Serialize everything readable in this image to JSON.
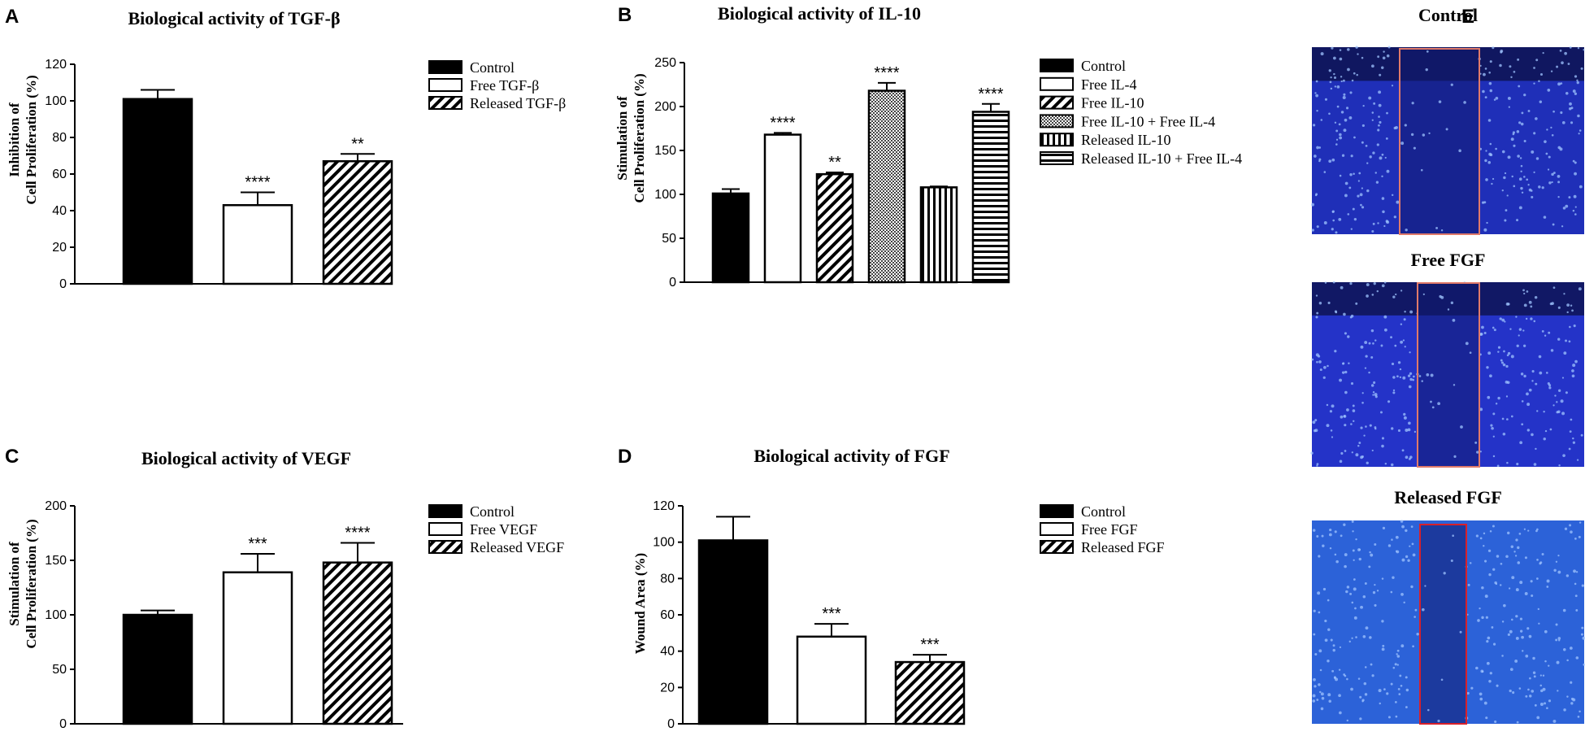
{
  "figure_letter_e": "E",
  "chart_data": [
    {
      "id": "A",
      "letter": "A",
      "type": "bar",
      "title": "Biological activity of TGF-β",
      "ylabel_lines": [
        "Inhibition of",
        "Cell Proliferation (%)"
      ],
      "xlabel": "",
      "ylim": [
        0,
        120
      ],
      "yticks": [
        0,
        20,
        40,
        60,
        80,
        100,
        120
      ],
      "categories": [
        "Control",
        "Free TGF-β",
        "Released TGF-β"
      ],
      "values": [
        101,
        43,
        67
      ],
      "errors": [
        5,
        7,
        4
      ],
      "significance": [
        "",
        "****",
        "**"
      ],
      "fills": [
        "black",
        "white",
        "diag"
      ],
      "legend": [
        "Control",
        "Free TGF-β",
        "Released TGF-β"
      ]
    },
    {
      "id": "B",
      "letter": "B",
      "type": "bar",
      "title": "Biological activity of IL-10",
      "ylabel_lines": [
        "Stimulation of",
        "Cell Proliferation (%)"
      ],
      "xlabel": "",
      "ylim": [
        0,
        250
      ],
      "yticks": [
        0,
        50,
        100,
        150,
        200,
        250
      ],
      "categories": [
        "Control",
        "Free IL-4",
        "Free IL-10",
        "Free IL-10 + Free IL-4",
        "Released IL-10",
        "Released IL-10 + Free IL-4"
      ],
      "values": [
        101,
        168,
        123,
        218,
        108,
        194
      ],
      "errors": [
        5,
        2,
        2,
        9,
        1,
        9
      ],
      "significance": [
        "",
        "****",
        "**",
        "****",
        "",
        "****"
      ],
      "fills": [
        "black",
        "white",
        "diag",
        "dots",
        "vert",
        "horiz"
      ],
      "legend": [
        "Control",
        "Free IL-4",
        "Free IL-10",
        "Free IL-10 + Free IL-4",
        "Released IL-10",
        "Released IL-10 + Free IL-4"
      ]
    },
    {
      "id": "C",
      "letter": "C",
      "type": "bar",
      "title": "Biological activity of VEGF",
      "ylabel_lines": [
        "Stimulation of",
        "Cell Proliferation (%)"
      ],
      "xlabel": "",
      "ylim": [
        0,
        200
      ],
      "yticks": [
        0,
        50,
        100,
        150,
        200
      ],
      "categories": [
        "Control",
        "Free VEGF",
        "Released VEGF"
      ],
      "values": [
        100,
        139,
        148
      ],
      "errors": [
        4,
        17,
        18
      ],
      "significance": [
        "",
        "***",
        "****"
      ],
      "fills": [
        "black",
        "white",
        "diag"
      ],
      "legend": [
        "Control",
        "Free VEGF",
        "Released VEGF"
      ]
    },
    {
      "id": "D",
      "letter": "D",
      "type": "bar",
      "title": "Biological activity of FGF",
      "ylabel_lines": [
        "Wound Area (%)"
      ],
      "xlabel": "",
      "ylim": [
        0,
        120
      ],
      "yticks": [
        0,
        20,
        40,
        60,
        80,
        100,
        120
      ],
      "categories": [
        "Control",
        "Free FGF",
        "Released FGF"
      ],
      "values": [
        101,
        48,
        34
      ],
      "errors": [
        13,
        7,
        4
      ],
      "significance": [
        "",
        "***",
        "***"
      ],
      "fills": [
        "black",
        "white",
        "diag"
      ],
      "legend": [
        "Control",
        "Free FGF",
        "Released FGF"
      ]
    }
  ],
  "micrographs": [
    {
      "title": "Control",
      "stain_color": "#1f2fb8",
      "box_color": "#e07a6a"
    },
    {
      "title": "Free FGF",
      "stain_color": "#2433c8",
      "box_color": "#e07a6a"
    },
    {
      "title": "Released FGF",
      "stain_color": "#2c62d8",
      "box_color": "#d8202a"
    }
  ]
}
